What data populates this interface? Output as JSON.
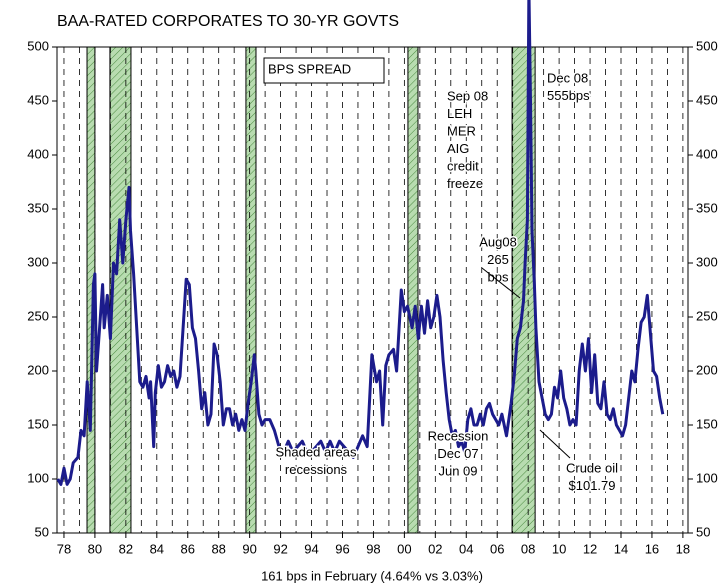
{
  "chart_data": {
    "type": "line",
    "title": "BAA-RATED CORPORATES TO 30-YR GOVTS",
    "xlabel": "161 bps in February (4.64% vs 3.03%)",
    "xlim": [
      1977.55,
      2018.33
    ],
    "ylim": [
      50,
      500
    ],
    "xticks": [
      {
        "value": 1978,
        "label": "78"
      },
      {
        "value": 1980,
        "label": "80"
      },
      {
        "value": 1982,
        "label": "82"
      },
      {
        "value": 1984,
        "label": "84"
      },
      {
        "value": 1986,
        "label": "86"
      },
      {
        "value": 1988,
        "label": "88"
      },
      {
        "value": 1990,
        "label": "90"
      },
      {
        "value": 1992,
        "label": "92"
      },
      {
        "value": 1994,
        "label": "94"
      },
      {
        "value": 1996,
        "label": "96"
      },
      {
        "value": 1998,
        "label": "98"
      },
      {
        "value": 2000,
        "label": "00"
      },
      {
        "value": 2002,
        "label": "02"
      },
      {
        "value": 2004,
        "label": "04"
      },
      {
        "value": 2006,
        "label": "06"
      },
      {
        "value": 2008,
        "label": "08"
      },
      {
        "value": 2010,
        "label": "10"
      },
      {
        "value": 2012,
        "label": "12"
      },
      {
        "value": 2014,
        "label": "14"
      },
      {
        "value": 2016,
        "label": "16"
      },
      {
        "value": 2018,
        "label": "18"
      }
    ],
    "minor_xticks": [
      1979,
      1981,
      1983,
      1985,
      1987,
      1989,
      1991,
      1993,
      1995,
      1997,
      1999,
      2001,
      2003,
      2005,
      2007,
      2009,
      2011,
      2013,
      2015,
      2017
    ],
    "yticks": [
      50,
      100,
      150,
      200,
      250,
      300,
      350,
      400,
      450,
      500
    ],
    "y2ticks": [
      50,
      100,
      150,
      200,
      250,
      300,
      350,
      400,
      450,
      500
    ],
    "grid": true,
    "recessions": [
      [
        1979.49,
        1980.0
      ],
      [
        1980.97,
        1982.33
      ],
      [
        1989.76,
        1990.41
      ],
      [
        2000.23,
        2000.88
      ],
      [
        2006.96,
        2008.45
      ]
    ],
    "recession_color": "#b8dcb0",
    "series": [
      {
        "name": "BPS SPREAD",
        "color": "#1c1c8c",
        "x": [
          1977.6,
          1977.8,
          1978.0,
          1978.2,
          1978.4,
          1978.6,
          1978.9,
          1979.1,
          1979.3,
          1979.5,
          1979.7,
          1979.9,
          1980.0,
          1980.1,
          1980.3,
          1980.5,
          1980.6,
          1980.8,
          1981.0,
          1981.2,
          1981.4,
          1981.6,
          1981.8,
          1982.0,
          1982.2,
          1982.3,
          1982.5,
          1982.7,
          1982.9,
          1983.1,
          1983.3,
          1983.5,
          1983.6,
          1983.8,
          1983.9,
          1984.1,
          1984.3,
          1984.5,
          1984.7,
          1984.9,
          1985.1,
          1985.3,
          1985.5,
          1985.7,
          1985.9,
          1986.1,
          1986.3,
          1986.5,
          1986.7,
          1986.9,
          1987.1,
          1987.3,
          1987.5,
          1987.7,
          1987.9,
          1988.1,
          1988.3,
          1988.5,
          1988.7,
          1988.9,
          1989.1,
          1989.3,
          1989.5,
          1989.7,
          1989.9,
          1990.1,
          1990.3,
          1990.4,
          1990.6,
          1990.8,
          1991.0,
          1991.3,
          1991.6,
          1991.9,
          1992.2,
          1992.5,
          1992.8,
          1993.1,
          1993.4,
          1993.7,
          1994.0,
          1994.3,
          1994.6,
          1994.9,
          1995.2,
          1995.5,
          1995.8,
          1996.1,
          1996.4,
          1996.7,
          1997.0,
          1997.3,
          1997.6,
          1997.9,
          1998.2,
          1998.4,
          1998.6,
          1998.8,
          1999.0,
          1999.3,
          1999.5,
          1999.8,
          2000.0,
          2000.2,
          2000.5,
          2000.7,
          2000.9,
          2001.1,
          2001.3,
          2001.5,
          2001.7,
          2001.9,
          2002.1,
          2002.3,
          2002.5,
          2002.7,
          2002.9,
          2003.1,
          2003.3,
          2003.5,
          2003.7,
          2003.9,
          2004.1,
          2004.3,
          2004.5,
          2004.7,
          2004.9,
          2005.1,
          2005.3,
          2005.5,
          2005.7,
          2005.9,
          2006.1,
          2006.3,
          2006.6,
          2006.9,
          2007.1,
          2007.3,
          2007.5,
          2007.7,
          2007.8,
          2007.95,
          2008.05,
          2008.15,
          2008.25,
          2008.4,
          2008.5,
          2008.7,
          2008.9,
          2009.1,
          2009.3,
          2009.5,
          2009.7,
          2009.9,
          2010.1,
          2010.3,
          2010.5,
          2010.7,
          2010.9,
          2011.1,
          2011.3,
          2011.5,
          2011.7,
          2011.9,
          2012.1,
          2012.3,
          2012.5,
          2012.7,
          2012.9,
          2013.1,
          2013.3,
          2013.5,
          2013.7,
          2013.9,
          2014.1,
          2014.3,
          2014.5,
          2014.7,
          2014.9,
          2015.1,
          2015.3,
          2015.5,
          2015.7,
          2015.9,
          2016.1,
          2016.3,
          2016.5,
          2016.7
        ],
        "values": [
          100,
          95,
          110,
          95,
          100,
          115,
          120,
          145,
          140,
          190,
          145,
          280,
          290,
          200,
          240,
          280,
          240,
          270,
          230,
          300,
          290,
          340,
          300,
          340,
          370,
          330,
          290,
          240,
          190,
          185,
          195,
          175,
          190,
          130,
          180,
          205,
          185,
          190,
          205,
          195,
          200,
          185,
          195,
          240,
          285,
          280,
          240,
          230,
          200,
          165,
          180,
          150,
          160,
          225,
          215,
          190,
          150,
          165,
          165,
          150,
          160,
          145,
          155,
          145,
          170,
          190,
          215,
          200,
          160,
          150,
          155,
          155,
          145,
          130,
          125,
          135,
          125,
          130,
          135,
          125,
          125,
          130,
          135,
          125,
          135,
          125,
          135,
          130,
          125,
          120,
          130,
          140,
          130,
          215,
          190,
          200,
          150,
          205,
          215,
          220,
          200,
          275,
          255,
          260,
          240,
          260,
          230,
          260,
          235,
          265,
          240,
          250,
          270,
          250,
          210,
          180,
          155,
          140,
          145,
          130,
          135,
          125,
          155,
          165,
          150,
          150,
          160,
          150,
          165,
          170,
          160,
          155,
          150,
          160,
          140,
          170,
          195,
          230,
          240,
          265,
          300,
          340,
          555,
          450,
          330,
          280,
          240,
          190,
          175,
          160,
          155,
          160,
          185,
          175,
          200,
          175,
          165,
          150,
          155,
          150,
          200,
          225,
          200,
          230,
          180,
          215,
          170,
          165,
          190,
          160,
          155,
          165,
          150,
          145,
          140,
          150,
          175,
          200,
          190,
          220,
          245,
          250,
          270,
          235,
          200,
          195,
          175,
          160
        ]
      }
    ],
    "annotations": [
      {
        "lines": [
          "BPS SPREAD"
        ]
      },
      {
        "lines": [
          "Sep 08",
          "LEH",
          "MER",
          "AIG",
          "credit",
          "freeze"
        ]
      },
      {
        "lines": [
          "Dec 08",
          "555bps"
        ]
      },
      {
        "lines": [
          "Aug08",
          "265",
          "bps"
        ]
      },
      {
        "lines": [
          "Shaded areas",
          "recessions"
        ]
      },
      {
        "lines": [
          "Recession",
          "Dec 07",
          "Jun 09"
        ]
      },
      {
        "lines": [
          "Crude oil",
          "$101.79"
        ]
      }
    ]
  }
}
